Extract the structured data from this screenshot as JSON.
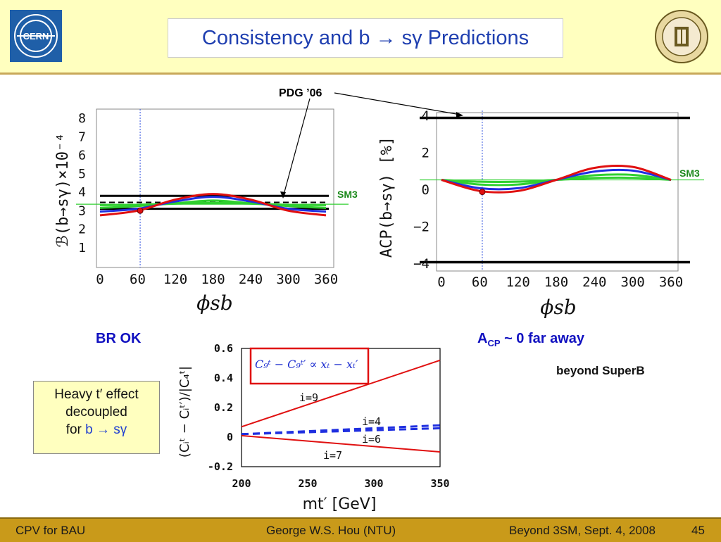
{
  "header": {
    "title": "Consistency and b → sγ Predictions",
    "left_logo_text": "CERN",
    "right_logo": "university-seal"
  },
  "annotations": {
    "pdg": "PDG ’06",
    "sm3_left": "SM3",
    "sm3_right": "SM3",
    "br_ok": "BR OK",
    "acp_main": "A",
    "acp_sub": "CP",
    "acp_rest": " ~ 0 far away",
    "beyond": "beyond SuperB",
    "note_line1": "Heavy t′ effect",
    "note_line2": "decoupled",
    "note_line3_prefix": "for ",
    "note_line3_b": "b → sγ",
    "formula": "C₉ᵗ − C₉ᵗ′ ∝ xₜ − xₜ′"
  },
  "footer": {
    "left": "CPV for BAU",
    "center": "George W.S. Hou (NTU)",
    "right": "Beyond 3SM, Sept. 4, 2008",
    "page": "45"
  },
  "colors": {
    "header_bg": "#ffffbf",
    "footer_bg": "#c99a1a",
    "title": "#1f3fb0",
    "red": "#e01010",
    "blue": "#1f2fe0",
    "green": "#30d030",
    "label_blue": "#1010c0"
  },
  "chart_data": [
    {
      "type": "line",
      "title": "",
      "ylabel": "ℬ(b→sγ)×10⁻⁴",
      "xlabel": "ϕsb",
      "xlim": [
        0,
        360
      ],
      "ylim": [
        0,
        8.5
      ],
      "xticks": [
        0,
        60,
        120,
        180,
        240,
        300,
        360
      ],
      "yticks": [
        1,
        2,
        3,
        4,
        5,
        6,
        7,
        8
      ],
      "x_tick_labels": [
        "0",
        "60",
        "120",
        "180",
        "240",
        "300",
        "360"
      ],
      "y_tick_labels": [
        "1",
        "2",
        "3",
        "4",
        "5",
        "6",
        "7",
        "8"
      ],
      "pdg_band": {
        "upper": 3.8,
        "central": 3.45,
        "lower": 3.1
      },
      "sm_line": 3.35,
      "marker": {
        "x": 64,
        "y": 3.0
      },
      "series": [
        {
          "color": "red",
          "x": [
            0,
            60,
            120,
            180,
            240,
            300,
            360
          ],
          "values": [
            2.75,
            3.0,
            3.6,
            3.9,
            3.6,
            3.0,
            2.75
          ]
        },
        {
          "color": "blue",
          "x": [
            0,
            60,
            120,
            180,
            240,
            300,
            360
          ],
          "values": [
            2.95,
            3.1,
            3.5,
            3.75,
            3.5,
            3.1,
            2.95
          ]
        },
        {
          "color": "green",
          "x": [
            0,
            60,
            120,
            180,
            240,
            300,
            360
          ],
          "values": [
            3.15,
            3.25,
            3.4,
            3.55,
            3.4,
            3.25,
            3.15
          ]
        },
        {
          "color": "green",
          "x": [
            0,
            60,
            120,
            180,
            240,
            300,
            360
          ],
          "values": [
            3.3,
            3.32,
            3.38,
            3.42,
            3.38,
            3.32,
            3.3
          ]
        }
      ]
    },
    {
      "type": "line",
      "title": "",
      "ylabel": "ACP(b→sγ) [%]",
      "xlabel": "ϕsb",
      "xlim": [
        0,
        360
      ],
      "ylim": [
        -4.3,
        4.3
      ],
      "x_tick_labels": [
        "0",
        "60",
        "120",
        "180",
        "240",
        "300",
        "360"
      ],
      "y_tick_labels": [
        "4",
        "2",
        "0",
        "−2",
        "−4"
      ],
      "yticks": [
        4,
        2,
        0,
        -2,
        -4
      ],
      "pdg_lines": [
        3.9,
        -3.9
      ],
      "sm_line": 0.55,
      "marker": {
        "x": 64,
        "y": -0.1
      },
      "series": [
        {
          "color": "red",
          "x": [
            0,
            60,
            120,
            180,
            240,
            300,
            360
          ],
          "values": [
            0.55,
            -0.05,
            -0.05,
            0.55,
            1.2,
            1.25,
            0.55
          ]
        },
        {
          "color": "blue",
          "x": [
            0,
            60,
            120,
            180,
            240,
            300,
            360
          ],
          "values": [
            0.55,
            0.1,
            0.1,
            0.55,
            1.0,
            1.05,
            0.55
          ]
        },
        {
          "color": "green",
          "x": [
            0,
            60,
            120,
            180,
            240,
            300,
            360
          ],
          "values": [
            0.55,
            0.3,
            0.3,
            0.55,
            0.8,
            0.82,
            0.55
          ]
        },
        {
          "color": "green",
          "x": [
            0,
            60,
            120,
            180,
            240,
            300,
            360
          ],
          "values": [
            0.55,
            0.45,
            0.45,
            0.55,
            0.65,
            0.66,
            0.55
          ]
        }
      ]
    },
    {
      "type": "line",
      "title": "",
      "ylabel": "(Cᵢᵗ − Cᵢᵗ′)/|C₄ᵗ|",
      "xlabel": "mt′ [GeV]",
      "xlim": [
        200,
        350
      ],
      "ylim": [
        -0.2,
        0.6
      ],
      "x_tick_labels": [
        "200",
        "250",
        "300",
        "350"
      ],
      "y_tick_labels": [
        "0.6",
        "0.4",
        "0.2",
        "0",
        "-0.2"
      ],
      "xticks": [
        200,
        250,
        300,
        350
      ],
      "yticks": [
        0.6,
        0.4,
        0.2,
        0,
        -0.2
      ],
      "series": [
        {
          "name": "i=9",
          "color": "red",
          "x": [
            200,
            350
          ],
          "values": [
            0.07,
            0.52
          ]
        },
        {
          "name": "i=4",
          "color": "blue",
          "style": "dashed",
          "x": [
            200,
            350
          ],
          "values": [
            0.02,
            0.08
          ]
        },
        {
          "name": "i=6",
          "color": "blue",
          "style": "dashed",
          "x": [
            200,
            350
          ],
          "values": [
            0.02,
            0.06
          ]
        },
        {
          "name": "i=7",
          "color": "red",
          "x": [
            200,
            350
          ],
          "values": [
            0.01,
            -0.1
          ]
        }
      ]
    }
  ]
}
